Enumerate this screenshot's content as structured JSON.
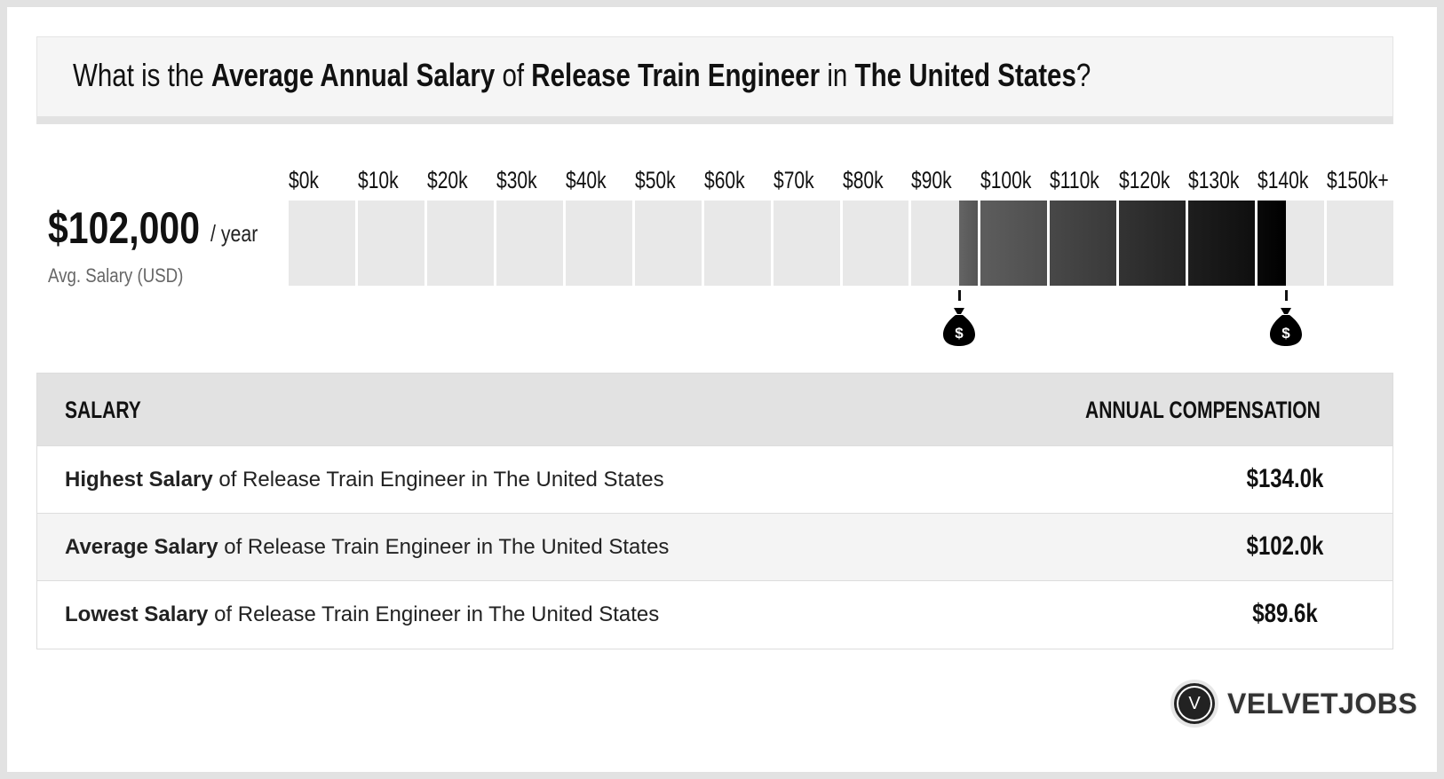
{
  "title": {
    "p1": "What is the ",
    "b1": "Average Annual Salary",
    "p2": " of ",
    "b2": "Release Train Engineer",
    "p3": " in ",
    "b3": "The United States",
    "p4": "?"
  },
  "summary": {
    "value": "$102,000",
    "unit": "/ year",
    "label": "Avg. Salary (USD)"
  },
  "scale": {
    "ticks": [
      "$0k",
      "$10k",
      "$20k",
      "$30k",
      "$40k",
      "$50k",
      "$60k",
      "$70k",
      "$80k",
      "$90k",
      "$100k",
      "$110k",
      "$120k",
      "$130k",
      "$140k",
      "$150k+"
    ],
    "range_low": 89.6,
    "range_high": 134.0,
    "marker_icon": "money-bag-icon"
  },
  "table": {
    "headers": [
      "SALARY",
      "ANNUAL COMPENSATION"
    ],
    "rows": [
      {
        "bold": "Highest Salary",
        "rest": " of Release Train Engineer in The United States",
        "value": "$134.0k"
      },
      {
        "bold": "Average Salary",
        "rest": " of Release Train Engineer in The United States",
        "value": "$102.0k"
      },
      {
        "bold": "Lowest Salary",
        "rest": " of Release Train Engineer in The United States",
        "value": "$89.6k"
      }
    ]
  },
  "logo": {
    "letter": "V",
    "name": "VELVETJOBS"
  }
}
